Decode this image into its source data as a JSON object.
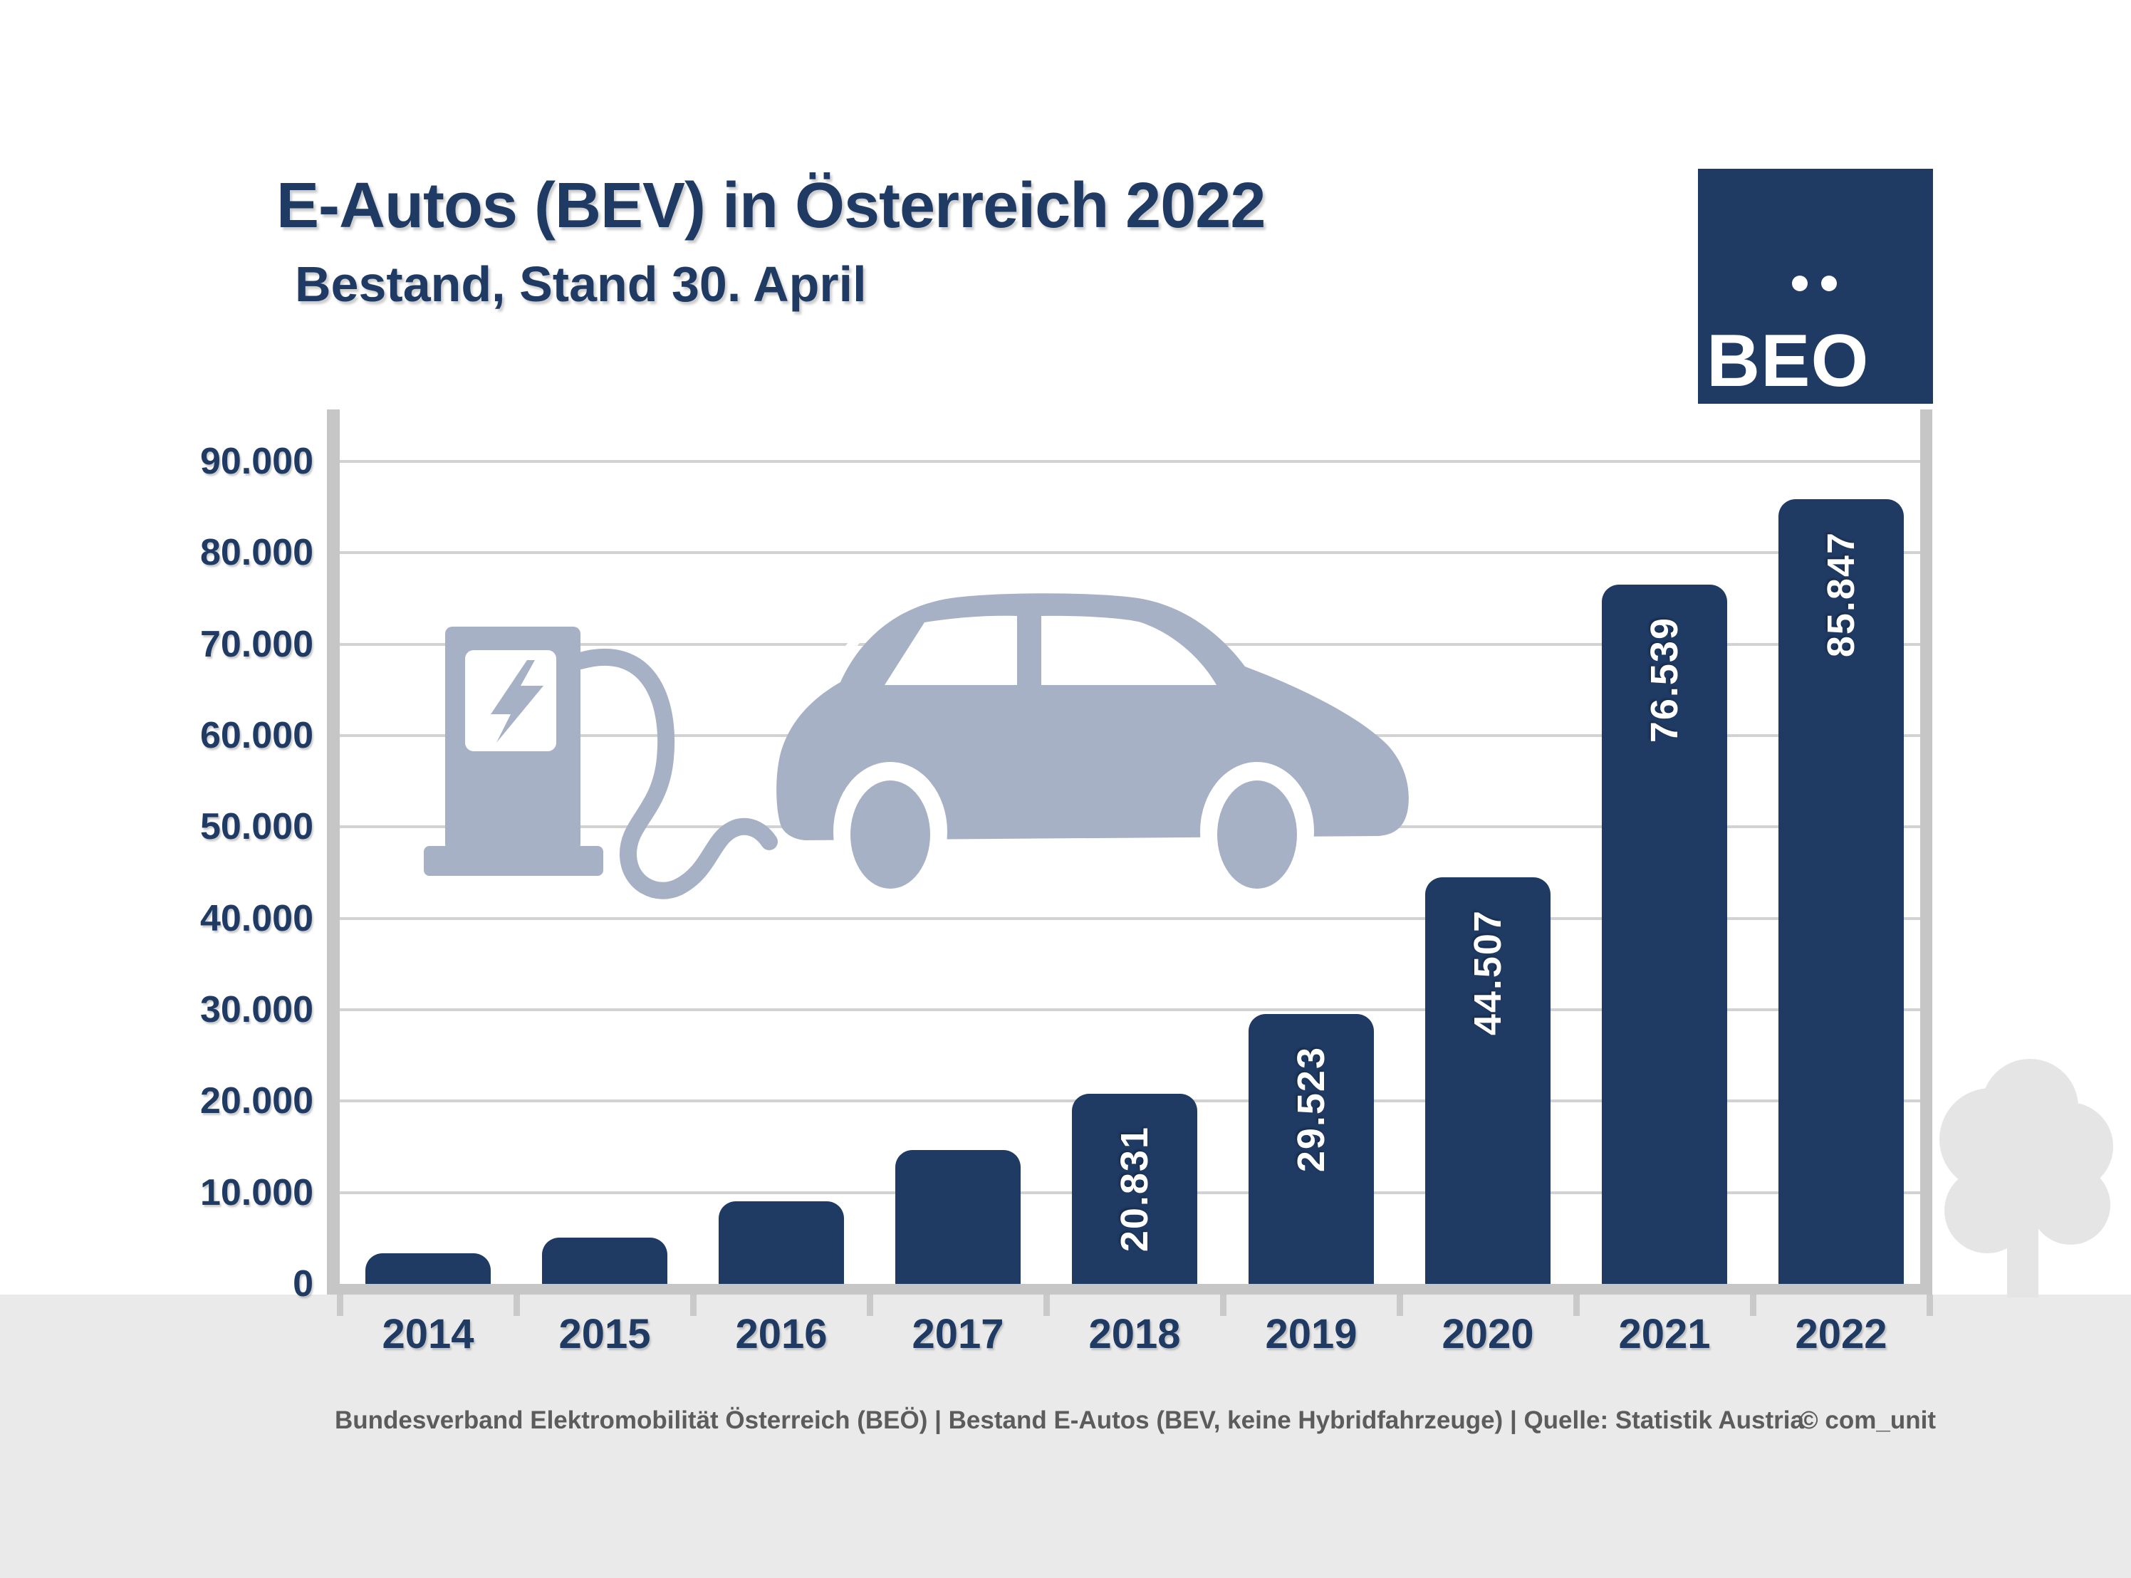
{
  "title": {
    "line1": "E-Autos (BEV) in Österreich 2022",
    "line2": "Bestand, Stand 30. April"
  },
  "logo": {
    "label": "BEO"
  },
  "chart_data": {
    "type": "bar",
    "title": "E-Autos (BEV) in Österreich 2022",
    "subtitle": "Bestand, Stand 30. April",
    "categories": [
      "2014",
      "2015",
      "2016",
      "2017",
      "2018",
      "2019",
      "2020",
      "2021",
      "2022"
    ],
    "values": [
      3386,
      5032,
      9073,
      14618,
      20831,
      29523,
      44507,
      76539,
      85847
    ],
    "bar_labels": [
      "",
      "",
      "",
      "",
      "20.831",
      "29.523",
      "44.507",
      "76.539",
      "85.847"
    ],
    "y_ticks": [
      {
        "value": 0,
        "label": "0"
      },
      {
        "value": 10000,
        "label": "10.000"
      },
      {
        "value": 20000,
        "label": "20.000"
      },
      {
        "value": 30000,
        "label": "30.000"
      },
      {
        "value": 40000,
        "label": "40.000"
      },
      {
        "value": 50000,
        "label": "50.000"
      },
      {
        "value": 60000,
        "label": "60.000"
      },
      {
        "value": 70000,
        "label": "70.000"
      },
      {
        "value": 80000,
        "label": "80.000"
      },
      {
        "value": 90000,
        "label": "90.000"
      }
    ],
    "ylim": [
      0,
      90000
    ],
    "xlabel": "",
    "ylabel": "",
    "grid": true,
    "legend": false
  },
  "footer": {
    "source": "Bundesverband Elektromobilität Österreich (BEÖ) | Bestand E-Autos (BEV, keine Hybridfahrzeuge) | Quelle: Statistik Austria",
    "credit": "© com_unit"
  },
  "colors": {
    "navy": "#1f3a63",
    "graphic_gray_blue": "#a7b1c5",
    "gridline": "#d2d2d2",
    "axis_gray": "#c6c6c6",
    "footer_band": "#eaeaea",
    "tree_gray": "#e5e5e5",
    "footer_text": "#5c5c5c"
  }
}
